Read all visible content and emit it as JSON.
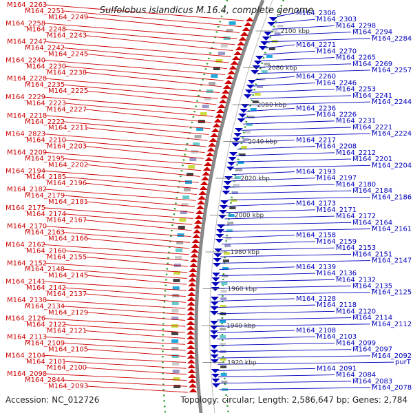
{
  "title": "Sulfolobus islandicus M.16.4, complete genome",
  "accession": "Accession: NC_012726",
  "topology": "Topology: circular; Length: 2,586,647 bp; Genes: 2,784",
  "colors": {
    "forward": "#cc0000",
    "reverse": "#0000bb",
    "backbone": "#888888",
    "dots": "#229922"
  },
  "kbp_labels": [
    "2100 kbp",
    "2080 kbp",
    "2060 kbp",
    "2040 kbp",
    "2020 kbp",
    "2000 kbp",
    "1980 kbp",
    "1960 kbp",
    "1940 kbp",
    "1920 kbp"
  ],
  "left_genes": [
    "M164_2263",
    "M164_2251",
    "M164_2249",
    "M164_2258",
    "M164_2248",
    "M164_2243",
    "M164_2247",
    "M164_2242",
    "M164_2245",
    "M164_2240",
    "M164_2230",
    "M164_2238",
    "M164_2228",
    "M164_2235",
    "M164_2225",
    "M164_2229",
    "M164_2223",
    "M164_2227",
    "M164_2218",
    "M164_2222",
    "M164_2211",
    "M164_2823",
    "M164_2210",
    "M164_2203",
    "M164_2209",
    "M164_2195",
    "M164_2202",
    "M164_2194",
    "M164_2185",
    "M164_2196",
    "M164_2182",
    "M164_2179",
    "M164_2181",
    "M164_2175",
    "M164_2174",
    "M164_2167",
    "M164_2170",
    "M164_2163",
    "M164_2166",
    "M164_2162",
    "M164_2160",
    "M164_2155",
    "M164_2152",
    "M164_2148",
    "M164_2145",
    "M164_2141",
    "M164_2142",
    "M164_2137",
    "M164_2138",
    "M164_2134",
    "M164_2129",
    "M164_2126",
    "M164_2122",
    "M164_2121",
    "M164_2113",
    "M164_2109",
    "M164_2105",
    "M164_2104",
    "M164_2101",
    "M164_2100",
    "M164_2098",
    "M164_2844",
    "M164_2093"
  ],
  "right_genes": [
    "M164_2306",
    "M164_2303",
    "M164_2298",
    "M164_2294",
    "M164_2284",
    "M164_2271",
    "M164_2270",
    "M164_2265",
    "M164_2269",
    "M164_2257",
    "M164_2260",
    "M164_2246",
    "M164_2253",
    "M164_2241",
    "M164_2244",
    "M164_2236",
    "M164_2226",
    "M164_2231",
    "M164_2221",
    "M164_2224",
    "M164_2217",
    "M164_2208",
    "M164_2212",
    "M164_2201",
    "M164_2204",
    "M164_2193",
    "M164_2197",
    "M164_2180",
    "M164_2184",
    "M164_2186",
    "M164_2173",
    "M164_2171",
    "M164_2172",
    "M164_2164",
    "M164_2161",
    "M164_2158",
    "M164_2159",
    "M164_2153",
    "M164_2151",
    "M164_2147",
    "M164_2139",
    "M164_2136",
    "M164_2132",
    "M164_2135",
    "M164_2125",
    "M164_2128",
    "M164_2118",
    "M164_2120",
    "M164_2114",
    "M164_2112",
    "M164_2108",
    "M164_2103",
    "M164_2099",
    "M164_2097",
    "M164_2092",
    "purT",
    "M164_2091",
    "M164_2084",
    "M164_2083",
    "M164_2078"
  ]
}
